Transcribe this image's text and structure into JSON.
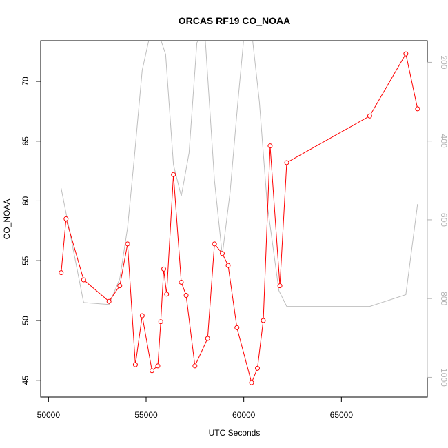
{
  "chart_data": {
    "type": "line",
    "title": "ORCAS RF19 CO_NOAA",
    "xlabel": "UTC Seconds",
    "ylabel": "CO_NOAA",
    "xlim": [
      49600,
      69400
    ],
    "ylim": [
      43.6,
      73.4
    ],
    "y2lim": [
      1050,
      145
    ],
    "y2_reversed": true,
    "x_ticks": [
      50000,
      55000,
      60000,
      65000
    ],
    "y_ticks": [
      45,
      50,
      55,
      60,
      65,
      70
    ],
    "y2_ticks": [
      200,
      400,
      600,
      800,
      1000
    ],
    "grid": false,
    "legend": "none",
    "series": [
      {
        "axis": "left",
        "color": "#ff0000",
        "marker": "open-circle",
        "x": [
          50650,
          50900,
          51800,
          53100,
          53650,
          54050,
          54450,
          54800,
          55300,
          55600,
          55750,
          55900,
          56050,
          56400,
          56800,
          57050,
          57500,
          58150,
          58500,
          58900,
          59200,
          59650,
          60400,
          60700,
          61000,
          61350,
          61850,
          62200,
          66450,
          68300,
          68900
        ],
        "y": [
          54.0,
          58.5,
          53.4,
          51.6,
          52.9,
          56.4,
          46.3,
          50.4,
          45.8,
          46.2,
          49.9,
          54.3,
          52.2,
          62.2,
          53.2,
          52.1,
          46.2,
          48.5,
          56.4,
          55.6,
          54.6,
          49.4,
          44.8,
          46.0,
          50.0,
          64.6,
          52.9,
          63.2,
          67.1,
          72.3,
          67.7
        ]
      },
      {
        "axis": "right",
        "color": "#bebebe",
        "marker": "none",
        "x": [
          50650,
          51800,
          53100,
          53650,
          54050,
          54400,
          54800,
          55200,
          55600,
          56000,
          56400,
          56800,
          57200,
          57600,
          58000,
          58500,
          58900,
          59300,
          59700,
          60000,
          60400,
          60800,
          61200,
          61800,
          62200,
          63000,
          66450,
          68300,
          68900
        ],
        "y": [
          520,
          810,
          815,
          750,
          620,
          440,
          220,
          130,
          120,
          180,
          460,
          540,
          430,
          150,
          120,
          500,
          690,
          530,
          300,
          140,
          120,
          300,
          560,
          780,
          820,
          820,
          820,
          790,
          560
        ]
      }
    ]
  }
}
